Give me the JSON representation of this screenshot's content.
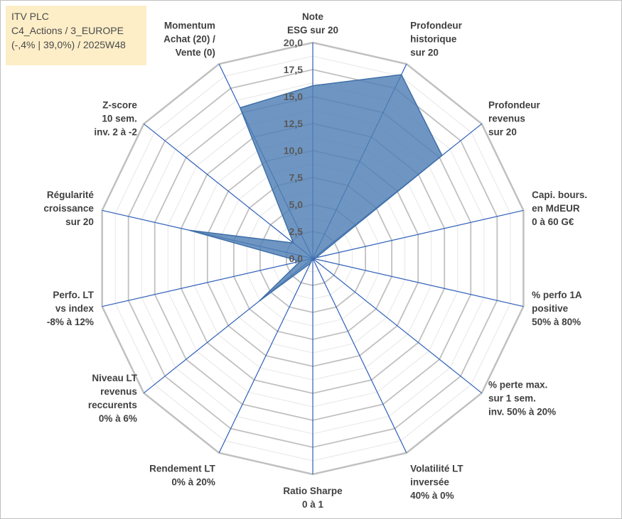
{
  "info": {
    "company": "ITV PLC",
    "category": "C4_Actions / 3_EUROPE",
    "stats": "(-,4% | 39,0%) / 2025W48"
  },
  "colors": {
    "fill": "#4f7fb5",
    "stroke": "#3f6fa8",
    "grid_major": "#c0c0c0",
    "grid_minor": "#e6e6e6",
    "spoke": "#2e5fb8",
    "text": "#404040"
  },
  "chart_data": {
    "type": "radar",
    "title": "",
    "rmin": 0,
    "rmax": 20,
    "ticks": [
      "0,0",
      "2,5",
      "5,0",
      "7,5",
      "10,0",
      "12,5",
      "15,0",
      "17,5",
      "20,0"
    ],
    "axes": [
      {
        "label": [
          "Note",
          "ESG sur 20"
        ],
        "value": 16
      },
      {
        "label": [
          "Profondeur",
          "historique",
          "sur 20"
        ],
        "value": 18.9
      },
      {
        "label": [
          "Profondeur",
          "revenus",
          "sur 20"
        ],
        "value": 15.3
      },
      {
        "label": [
          "Capi. bours.",
          "en MdEUR",
          "0 à 60 G€"
        ],
        "value": 0.3
      },
      {
        "label": [
          "% perfo 1A",
          "positive",
          "50% à 80%"
        ],
        "value": 0
      },
      {
        "label": [
          "% perte max.",
          "sur 1 sem.",
          "inv. 50% à 20%"
        ],
        "value": 0
      },
      {
        "label": [
          "Volatilité LT",
          "inversée",
          "40% à 0%"
        ],
        "value": 0
      },
      {
        "label": [
          "Ratio Sharpe",
          "0 à 1"
        ],
        "value": 0
      },
      {
        "label": [
          "Rendement LT",
          "0% à 20%"
        ],
        "value": 0.5
      },
      {
        "label": [
          "Niveau LT",
          "revenus",
          "reccurents",
          "0% à 6%"
        ],
        "value": 6.3
      },
      {
        "label": [
          "Perfo. LT",
          "vs index",
          "-8% à 12%"
        ],
        "value": 1.2
      },
      {
        "label": [
          "Régularité",
          "croissance",
          "sur 20"
        ],
        "value": 11.7
      },
      {
        "label": [
          "Z-score",
          "10 sem.",
          "inv. 2 à -2"
        ],
        "value": 2.3
      },
      {
        "label": [
          "Momentum",
          "Achat (20) /",
          "Vente (0)"
        ],
        "value": 15.5
      }
    ]
  }
}
